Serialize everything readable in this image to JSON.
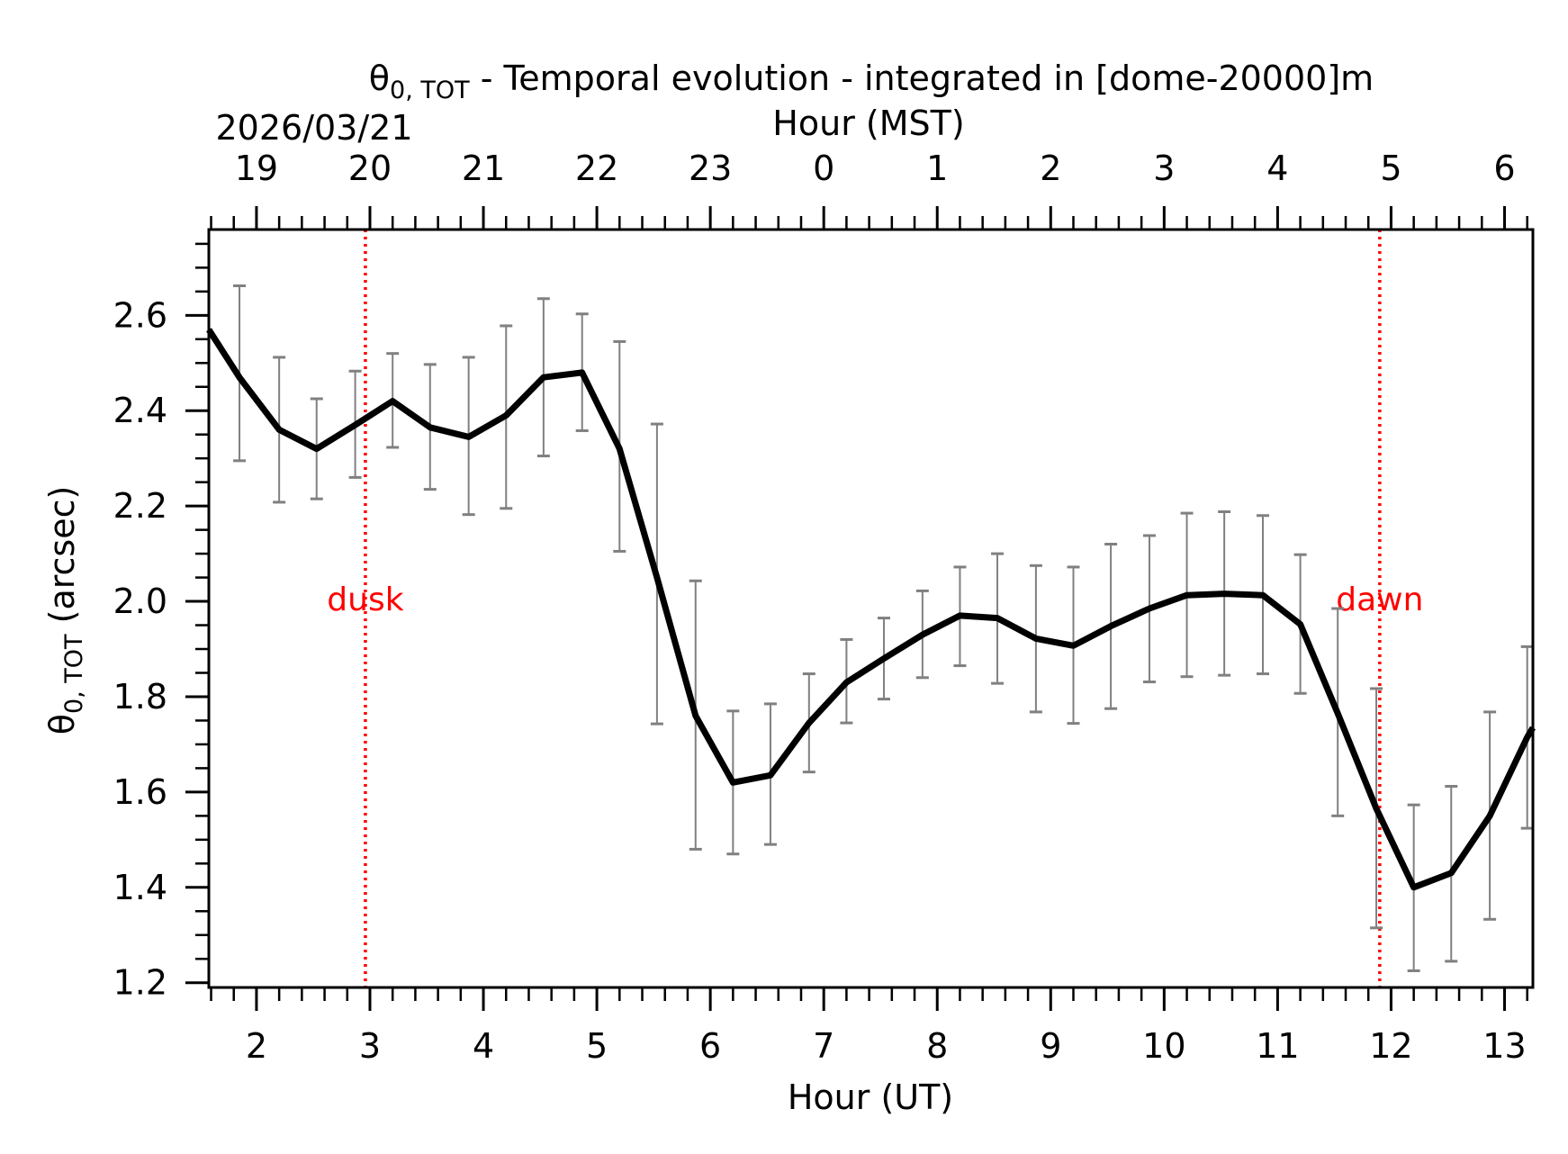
{
  "chart_data": {
    "type": "line",
    "title_symbol": "θ",
    "title_sub": "0, TOT",
    "title_rest": " - Temporal evolution - integrated in [dome-20000]m",
    "date_label": "2026/03/21",
    "top_axis_label": "Hour (MST)",
    "xlabel": "Hour (UT)",
    "ylabel_symbol": "θ",
    "ylabel_sub": "0, TOT",
    "ylabel_rest": " (arcsec)",
    "xlim": [
      1.58,
      13.25
    ],
    "ylim": [
      1.19,
      2.78
    ],
    "x_ticks": [
      {
        "v": 2,
        "label": "2"
      },
      {
        "v": 3,
        "label": "3"
      },
      {
        "v": 4,
        "label": "4"
      },
      {
        "v": 5,
        "label": "5"
      },
      {
        "v": 6,
        "label": "6"
      },
      {
        "v": 7,
        "label": "7"
      },
      {
        "v": 8,
        "label": "8"
      },
      {
        "v": 9,
        "label": "9"
      },
      {
        "v": 10,
        "label": "10"
      },
      {
        "v": 11,
        "label": "11"
      },
      {
        "v": 12,
        "label": "12"
      },
      {
        "v": 13,
        "label": "13"
      }
    ],
    "top_ticks": [
      {
        "v": 2,
        "label": "19"
      },
      {
        "v": 3,
        "label": "20"
      },
      {
        "v": 4,
        "label": "21"
      },
      {
        "v": 5,
        "label": "22"
      },
      {
        "v": 6,
        "label": "23"
      },
      {
        "v": 7,
        "label": "0"
      },
      {
        "v": 8,
        "label": "1"
      },
      {
        "v": 9,
        "label": "2"
      },
      {
        "v": 10,
        "label": "3"
      },
      {
        "v": 11,
        "label": "4"
      },
      {
        "v": 12,
        "label": "5"
      },
      {
        "v": 13,
        "label": "6"
      }
    ],
    "y_ticks": [
      {
        "v": 1.2,
        "label": "1.2"
      },
      {
        "v": 1.4,
        "label": "1.4"
      },
      {
        "v": 1.6,
        "label": "1.6"
      },
      {
        "v": 1.8,
        "label": "1.8"
      },
      {
        "v": 2.0,
        "label": "2.0"
      },
      {
        "v": 2.2,
        "label": "2.2"
      },
      {
        "v": 2.4,
        "label": "2.4"
      },
      {
        "v": 2.6,
        "label": "2.6"
      }
    ],
    "x_minor_step": 0.2,
    "y_minor_step": 0.05,
    "series": [
      {
        "name": "theta0_tot",
        "color": "#000000",
        "x": [
          1.58,
          1.85,
          2.2,
          2.53,
          2.87,
          3.2,
          3.53,
          3.87,
          4.2,
          4.53,
          4.87,
          5.2,
          5.53,
          5.87,
          6.2,
          6.53,
          6.87,
          7.2,
          7.53,
          7.87,
          8.2,
          8.53,
          8.87,
          9.2,
          9.53,
          9.87,
          10.2,
          10.53,
          10.87,
          11.2,
          11.53,
          11.87,
          12.2,
          12.53,
          12.87,
          13.2,
          13.25
        ],
        "y": [
          2.57,
          2.47,
          2.36,
          2.32,
          2.37,
          2.42,
          2.365,
          2.345,
          2.39,
          2.47,
          2.48,
          2.32,
          2.05,
          1.76,
          1.62,
          1.635,
          1.745,
          1.83,
          1.88,
          1.93,
          1.97,
          1.965,
          1.922,
          1.907,
          1.948,
          1.985,
          2.013,
          2.016,
          2.013,
          1.952,
          1.765,
          1.565,
          1.4,
          1.43,
          1.55,
          1.715,
          1.735
        ]
      }
    ],
    "error_bars": {
      "color": "#808080",
      "x": [
        1.85,
        2.2,
        2.53,
        2.87,
        3.2,
        3.53,
        3.87,
        4.2,
        4.53,
        4.87,
        5.2,
        5.53,
        5.87,
        6.2,
        6.53,
        6.87,
        7.2,
        7.53,
        7.87,
        8.2,
        8.53,
        8.87,
        9.2,
        9.53,
        9.87,
        10.2,
        10.53,
        10.87,
        11.2,
        11.53,
        11.87,
        12.2,
        12.53,
        12.87,
        13.2
      ],
      "lower": [
        2.295,
        2.208,
        2.215,
        2.26,
        2.323,
        2.235,
        2.182,
        2.195,
        2.305,
        2.358,
        2.105,
        1.743,
        1.48,
        1.47,
        1.49,
        1.642,
        1.745,
        1.795,
        1.84,
        1.865,
        1.828,
        1.768,
        1.744,
        1.775,
        1.831,
        1.842,
        1.845,
        1.848,
        1.807,
        1.55,
        1.315,
        1.225,
        1.245,
        1.333,
        1.524
      ],
      "upper": [
        2.662,
        2.512,
        2.425,
        2.483,
        2.52,
        2.497,
        2.512,
        2.578,
        2.635,
        2.603,
        2.545,
        2.372,
        2.043,
        1.77,
        1.785,
        1.848,
        1.92,
        1.965,
        2.022,
        2.072,
        2.1,
        2.075,
        2.072,
        2.12,
        2.138,
        2.185,
        2.188,
        2.18,
        2.098,
        1.985,
        1.817,
        1.573,
        1.612,
        1.768,
        1.905
      ]
    },
    "vlines": [
      {
        "x": 2.96,
        "label": "dusk",
        "label_y": 1.985,
        "color": "#ff0000"
      },
      {
        "x": 11.9,
        "label": "dawn",
        "label_y": 1.985,
        "color": "#ff0000"
      }
    ]
  }
}
